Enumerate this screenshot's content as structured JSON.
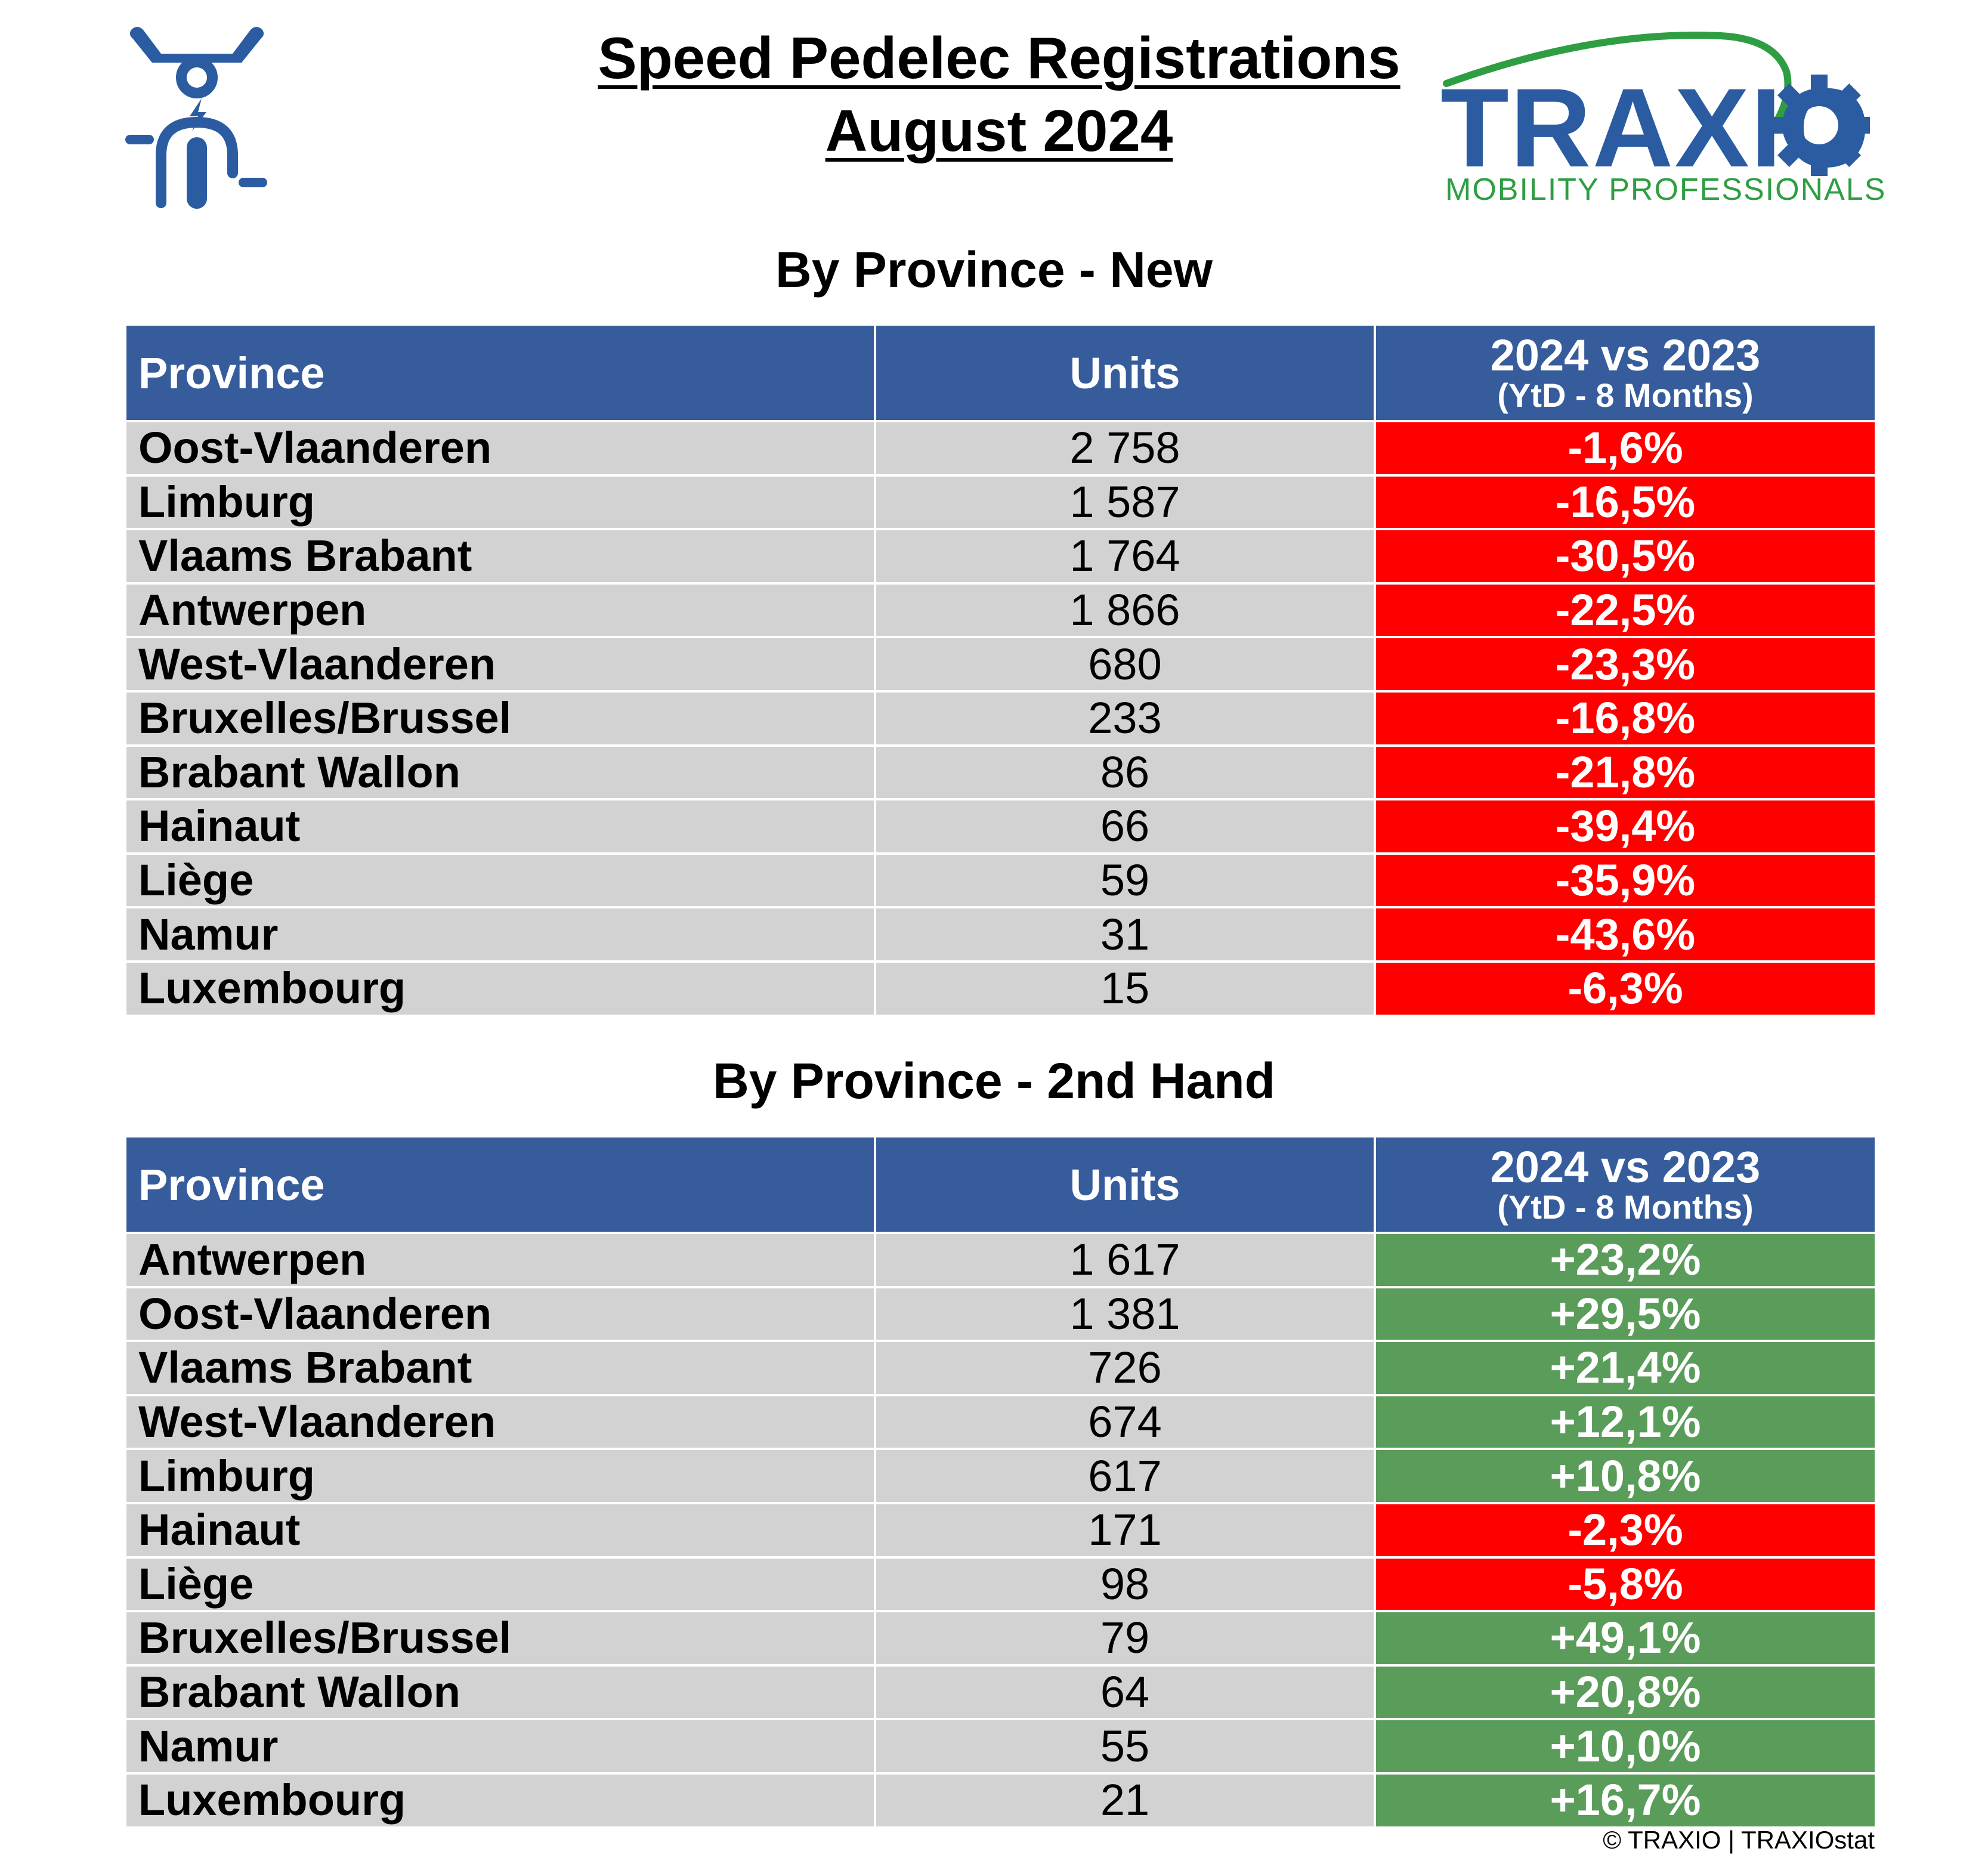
{
  "header": {
    "title_line1": "Speed Pedelec Registrations",
    "title_line2": "August 2024",
    "logo": {
      "text": "TRAXIO",
      "subtitle": "MOBILITY PROFESSIONALS",
      "color_text": "#2b5ca1",
      "color_sub": "#2f9e43"
    }
  },
  "table_headers": {
    "province": "Province",
    "units": "Units",
    "change_main": "2024 vs 2023",
    "change_sub": "(YtD - 8 Months)"
  },
  "colors": {
    "header_bg": "#365c9c",
    "row_bg": "#d2d2d2",
    "negative": "#ff0000",
    "positive": "#5a9c5a"
  },
  "new": {
    "title": "By Province - New",
    "rows": [
      {
        "province": "Oost-Vlaanderen",
        "units": "2 758",
        "change": "-1,6%"
      },
      {
        "province": "Limburg",
        "units": "1 587",
        "change": "-16,5%"
      },
      {
        "province": "Vlaams Brabant",
        "units": "1 764",
        "change": "-30,5%"
      },
      {
        "province": "Antwerpen",
        "units": "1 866",
        "change": "-22,5%"
      },
      {
        "province": "West-Vlaanderen",
        "units": "680",
        "change": "-23,3%"
      },
      {
        "province": "Bruxelles/Brussel",
        "units": "233",
        "change": "-16,8%"
      },
      {
        "province": "Brabant Wallon",
        "units": "86",
        "change": "-21,8%"
      },
      {
        "province": "Hainaut",
        "units": "66",
        "change": "-39,4%"
      },
      {
        "province": "Liège",
        "units": "59",
        "change": "-35,9%"
      },
      {
        "province": "Namur",
        "units": "31",
        "change": "-43,6%"
      },
      {
        "province": "Luxembourg",
        "units": "15",
        "change": "-6,3%"
      }
    ]
  },
  "second_hand": {
    "title": "By Province - 2nd Hand",
    "rows": [
      {
        "province": "Antwerpen",
        "units": "1 617",
        "change": "+23,2%"
      },
      {
        "province": "Oost-Vlaanderen",
        "units": "1 381",
        "change": "+29,5%"
      },
      {
        "province": "Vlaams Brabant",
        "units": "726",
        "change": "+21,4%"
      },
      {
        "province": "West-Vlaanderen",
        "units": "674",
        "change": "+12,1%"
      },
      {
        "province": "Limburg",
        "units": "617",
        "change": "+10,8%"
      },
      {
        "province": "Hainaut",
        "units": "171",
        "change": "-2,3%"
      },
      {
        "province": "Liège",
        "units": "98",
        "change": "-5,8%"
      },
      {
        "province": "Bruxelles/Brussel",
        "units": "79",
        "change": "+49,1%"
      },
      {
        "province": "Brabant Wallon",
        "units": "64",
        "change": "+20,8%"
      },
      {
        "province": "Namur",
        "units": "55",
        "change": "+10,0%"
      },
      {
        "province": "Luxembourg",
        "units": "21",
        "change": "+16,7%"
      }
    ]
  },
  "footer": {
    "copyright": "© TRAXIO | TRAXIOstat"
  },
  "icons": {
    "left_icon": "speed-pedelec-rider-icon"
  }
}
